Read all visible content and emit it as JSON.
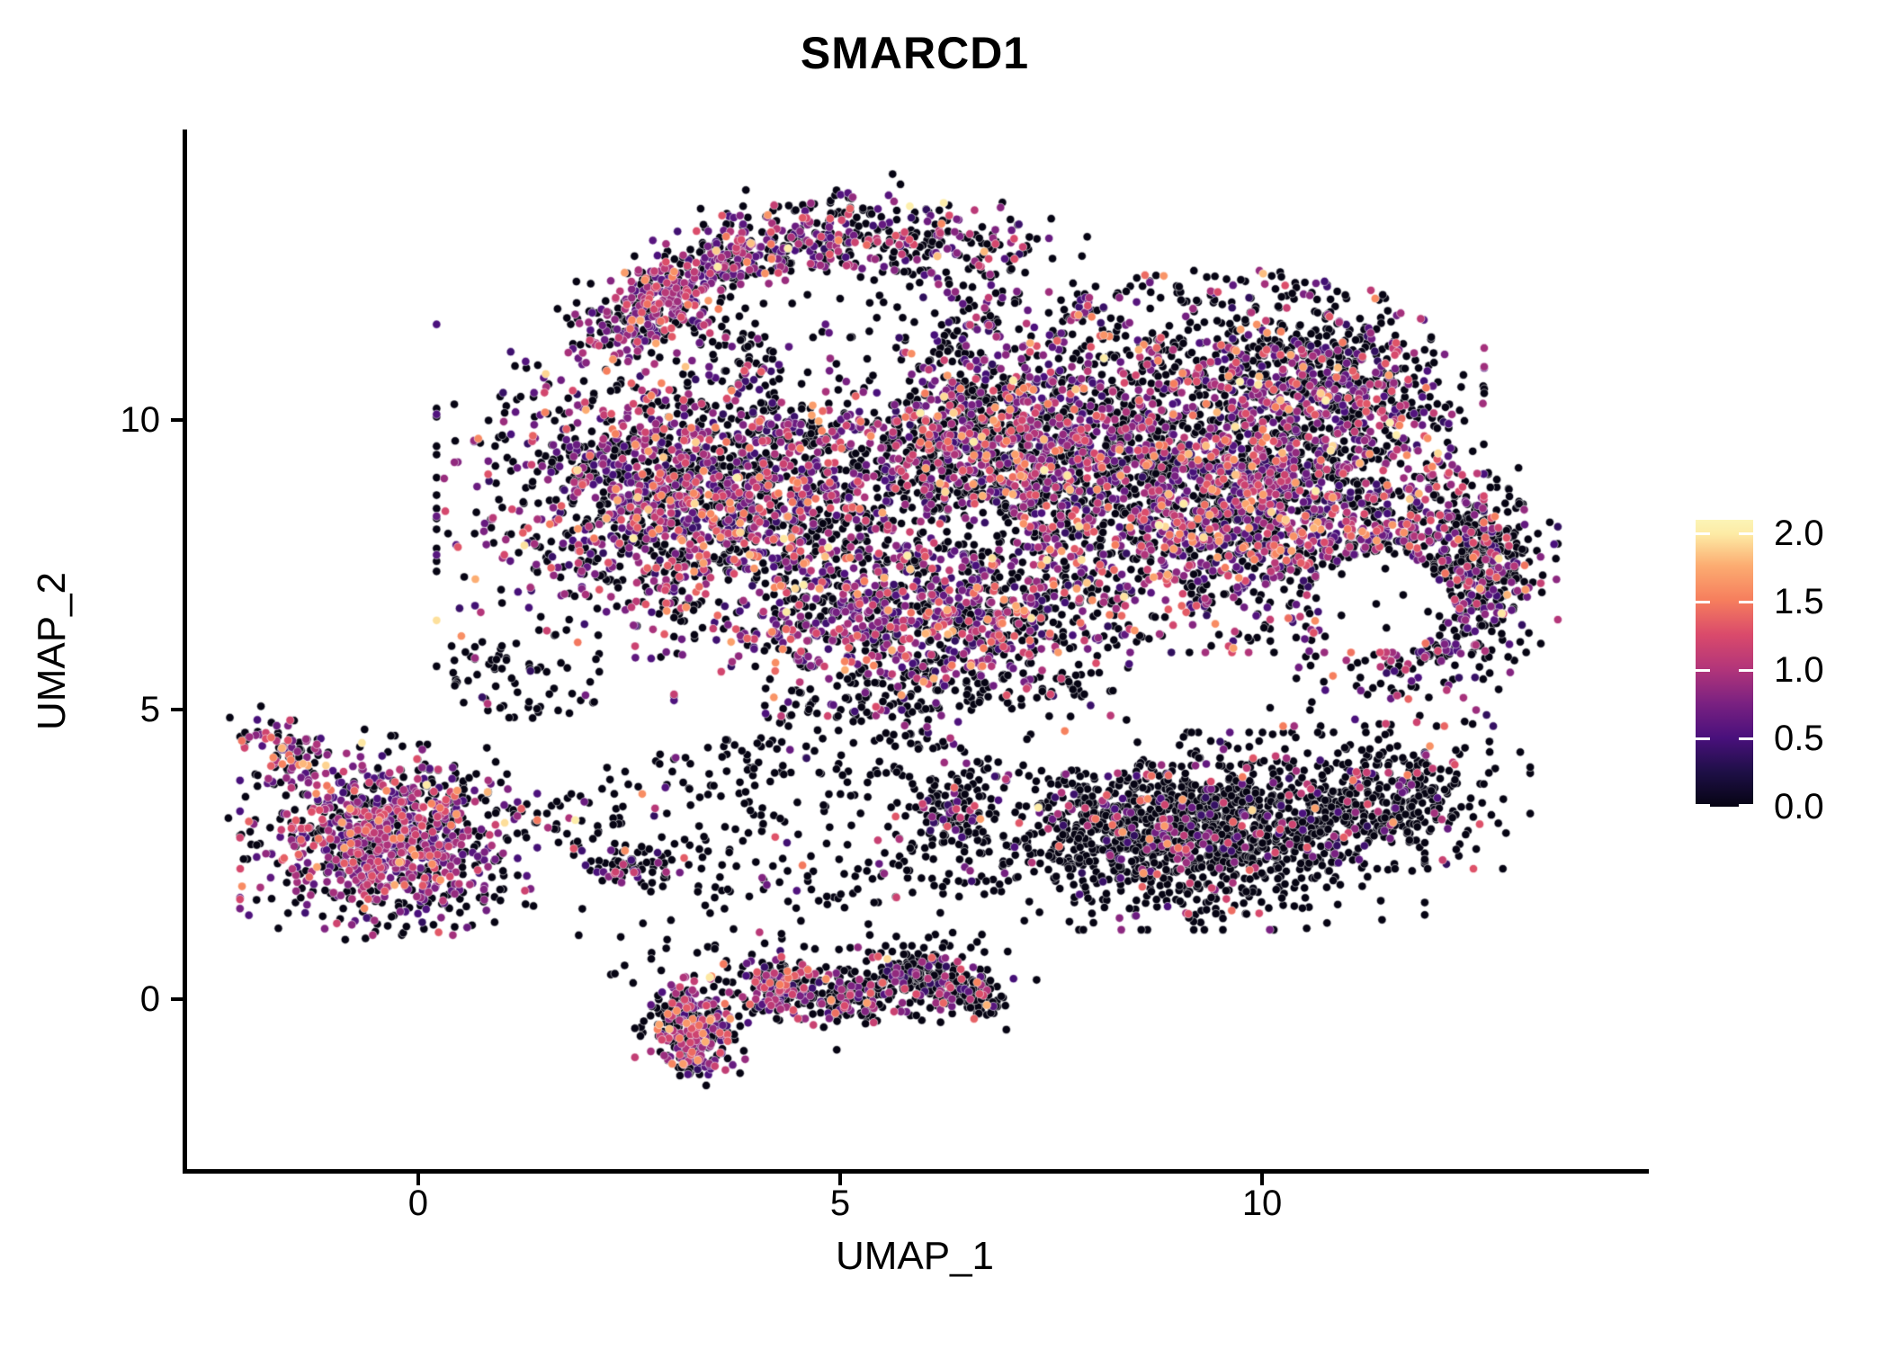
{
  "chart_data": {
    "type": "scatter",
    "title": "SMARCD1",
    "xlabel": "UMAP_1",
    "ylabel": "UMAP_2",
    "background": "#ffffff",
    "axis_color": "#000000",
    "grid": false,
    "x_ticks": [
      {
        "value": 0,
        "label": "0"
      },
      {
        "value": 5,
        "label": "5"
      },
      {
        "value": 10,
        "label": "10"
      }
    ],
    "y_ticks": [
      {
        "value": 0,
        "label": "0"
      },
      {
        "value": 5,
        "label": "5"
      },
      {
        "value": 10,
        "label": "10"
      }
    ],
    "xlim": [
      -2.77,
      14.54
    ],
    "ylim": [
      -2.97,
      15.02
    ],
    "point_radius_px": 4.6,
    "point_outline": "rgba(255,255,255,0.55)",
    "colorbar": {
      "position": "right",
      "bar_max_value": 2.1,
      "ticks": [
        {
          "value": 2.0,
          "label": "2.0"
        },
        {
          "value": 1.5,
          "label": "1.5"
        },
        {
          "value": 1.0,
          "label": "1.0"
        },
        {
          "value": 0.5,
          "label": "0.5"
        },
        {
          "value": 0.0,
          "label": "0.0"
        }
      ],
      "gradient_stops": [
        [
          0.0,
          "#060413"
        ],
        [
          0.12,
          "#1e0f46"
        ],
        [
          0.24,
          "#49107c"
        ],
        [
          0.36,
          "#7a2181"
        ],
        [
          0.48,
          "#b2357a"
        ],
        [
          0.6,
          "#da4a6b"
        ],
        [
          0.72,
          "#f67e5d"
        ],
        [
          0.84,
          "#fcac71"
        ],
        [
          0.95,
          "#fdeba5"
        ],
        [
          1.0,
          "#fcf4b6"
        ]
      ]
    },
    "seed": 1337,
    "color_profiles": {
      "mix": {
        "zero": 0.52,
        "bands": [
          [
            0.35,
            0.95,
            0.3
          ],
          [
            0.95,
            1.35,
            0.12
          ],
          [
            1.35,
            1.7,
            0.045
          ],
          [
            1.7,
            2.05,
            0.015
          ]
        ]
      },
      "mixBlack": {
        "zero": 0.63,
        "bands": [
          [
            0.35,
            0.95,
            0.24
          ],
          [
            0.95,
            1.35,
            0.09
          ],
          [
            1.35,
            1.7,
            0.03
          ],
          [
            1.7,
            2.05,
            0.01
          ]
        ]
      },
      "black": {
        "zero": 0.87,
        "bands": [
          [
            0.35,
            0.95,
            0.08
          ],
          [
            0.95,
            1.35,
            0.035
          ],
          [
            1.35,
            1.7,
            0.012
          ],
          [
            1.7,
            2.05,
            0.003
          ]
        ]
      },
      "blackMix": {
        "zero": 0.74,
        "bands": [
          [
            0.35,
            0.95,
            0.16
          ],
          [
            0.95,
            1.35,
            0.07
          ],
          [
            1.35,
            1.7,
            0.025
          ],
          [
            1.7,
            2.05,
            0.005
          ]
        ]
      },
      "purple": {
        "zero": 0.38,
        "bands": [
          [
            0.45,
            1.0,
            0.44
          ],
          [
            0.95,
            1.35,
            0.13
          ],
          [
            1.35,
            1.7,
            0.04
          ],
          [
            1.7,
            2.05,
            0.01
          ]
        ]
      },
      "purpleMix": {
        "zero": 0.45,
        "bands": [
          [
            0.45,
            1.0,
            0.37
          ],
          [
            0.95,
            1.35,
            0.12
          ],
          [
            1.35,
            1.7,
            0.05
          ],
          [
            1.7,
            2.05,
            0.01
          ]
        ]
      }
    },
    "clusters": [
      {
        "type": "blob",
        "cx": 3.4,
        "cy": 8.7,
        "rx": 2.8,
        "ry": 2.6,
        "n": 2000,
        "profile": "mix"
      },
      {
        "type": "blob",
        "cx": 7.0,
        "cy": 9.5,
        "rx": 2.6,
        "ry": 2.3,
        "n": 1850,
        "profile": "mix"
      },
      {
        "type": "blob",
        "cx": 9.9,
        "cy": 8.6,
        "rx": 2.4,
        "ry": 2.3,
        "n": 1700,
        "profile": "mix"
      },
      {
        "type": "blob",
        "cx": 11.8,
        "cy": 7.1,
        "rx": 1.5,
        "ry": 2.1,
        "n": 750,
        "profile": "mixBlack"
      },
      {
        "type": "blob",
        "cx": 6.1,
        "cy": 6.6,
        "rx": 2.7,
        "ry": 1.5,
        "n": 1000,
        "profile": "mix"
      },
      {
        "type": "blob",
        "cx": 10.7,
        "cy": 10.6,
        "rx": 1.7,
        "ry": 1.2,
        "n": 560,
        "profile": "mixBlack"
      },
      {
        "type": "blob",
        "cx": 12.7,
        "cy": 7.5,
        "rx": 0.5,
        "ry": 1.4,
        "n": 190,
        "profile": "blackMix"
      },
      {
        "type": "blob",
        "cx": 9.2,
        "cy": 2.9,
        "rx": 2.4,
        "ry": 1.5,
        "n": 1450,
        "profile": "black"
      },
      {
        "type": "blob",
        "cx": 11.7,
        "cy": 3.5,
        "rx": 1.3,
        "ry": 1.1,
        "n": 300,
        "profile": "black"
      },
      {
        "type": "blob",
        "cx": -0.35,
        "cy": 2.75,
        "rx": 1.55,
        "ry": 1.45,
        "n": 880,
        "profile": "purple"
      },
      {
        "type": "seg",
        "x1": 2.5,
        "y1": 11.8,
        "x2": 4.6,
        "y2": 13.35,
        "w": 0.35,
        "n": 320,
        "profile": "purple"
      },
      {
        "type": "seg",
        "x1": 4.6,
        "y1": 13.35,
        "x2": 7.1,
        "y2": 12.75,
        "w": 0.4,
        "n": 320,
        "profile": "mixBlack"
      },
      {
        "type": "seg",
        "x1": 2.05,
        "y1": 11.35,
        "x2": 4.1,
        "y2": 13.1,
        "w": 0.28,
        "n": 260,
        "profile": "purple"
      },
      {
        "type": "seg",
        "x1": -1.92,
        "y1": 4.65,
        "x2": -1.25,
        "y2": 3.95,
        "w": 0.22,
        "n": 80,
        "profile": "purpleMix"
      },
      {
        "type": "blob",
        "cx": 3.25,
        "cy": -0.45,
        "rx": 0.6,
        "ry": 0.75,
        "n": 250,
        "profile": "purpleMix"
      },
      {
        "type": "blob",
        "cx": 4.35,
        "cy": 0.2,
        "rx": 0.55,
        "ry": 0.5,
        "n": 165,
        "profile": "mix"
      },
      {
        "type": "blob",
        "cx": 5.1,
        "cy": 0.0,
        "rx": 0.5,
        "ry": 0.45,
        "n": 125,
        "profile": "blackMix"
      },
      {
        "type": "blob",
        "cx": 5.95,
        "cy": 0.35,
        "rx": 0.65,
        "ry": 0.5,
        "n": 210,
        "profile": "blackMix"
      },
      {
        "type": "blob",
        "cx": 6.6,
        "cy": 0.05,
        "rx": 0.4,
        "ry": 0.4,
        "n": 85,
        "profile": "black"
      },
      {
        "type": "seg",
        "x1": 2.55,
        "y1": 0.55,
        "x2": 6.9,
        "y2": 0.6,
        "w": 0.55,
        "n": 130,
        "profile": "black"
      },
      {
        "type": "blob",
        "cx": 3.3,
        "cy": -1.05,
        "rx": 0.3,
        "ry": 0.4,
        "n": 55,
        "profile": "mix"
      },
      {
        "type": "blob",
        "cx": 5.0,
        "cy": 3.1,
        "rx": 3.5,
        "ry": 1.5,
        "n": 400,
        "profile": "black",
        "flat": true
      },
      {
        "type": "blob",
        "cx": 2.5,
        "cy": 2.2,
        "rx": 0.5,
        "ry": 0.4,
        "n": 55,
        "profile": "blackMix"
      },
      {
        "type": "blob",
        "cx": 6.4,
        "cy": 3.3,
        "rx": 0.7,
        "ry": 0.5,
        "n": 75,
        "profile": "blackMix"
      },
      {
        "type": "blob",
        "cx": 6.3,
        "cy": 5.0,
        "rx": 2.2,
        "ry": 0.7,
        "n": 240,
        "profile": "black",
        "flat": true
      },
      {
        "type": "blob",
        "cx": 9.6,
        "cy": 11.7,
        "rx": 2.2,
        "ry": 0.9,
        "n": 230,
        "profile": "blackMix",
        "flat": true
      },
      {
        "type": "blob",
        "cx": -0.3,
        "cy": 2.8,
        "rx": 2.0,
        "ry": 1.9,
        "n": 120,
        "profile": "black",
        "flat": true
      },
      {
        "type": "blob",
        "cx": 1.3,
        "cy": 5.6,
        "rx": 1.0,
        "ry": 0.8,
        "n": 65,
        "profile": "black",
        "flat": true
      },
      {
        "type": "blob",
        "cx": 5.0,
        "cy": 11.6,
        "rx": 1.9,
        "ry": 0.9,
        "n": 150,
        "profile": "black",
        "flat": true
      }
    ],
    "voids": [
      {
        "cx": 11.4,
        "cy": 6.85,
        "rx": 0.85,
        "ry": 0.85,
        "keep": 0.05
      },
      {
        "cx": 5.1,
        "cy": 10.75,
        "rx": 0.85,
        "ry": 0.6,
        "keep": 0.3
      },
      {
        "cx": 4.9,
        "cy": 11.95,
        "rx": 1.5,
        "ry": 0.6,
        "keep": 0.25
      },
      {
        "cx": 7.7,
        "cy": 4.6,
        "rx": 1.35,
        "ry": 0.6,
        "keep": 0.15
      },
      {
        "cx": 3.9,
        "cy": 6.9,
        "rx": 0.5,
        "ry": 0.45,
        "keep": 0.3
      },
      {
        "cx": 6.6,
        "cy": 8.15,
        "rx": 0.5,
        "ry": 0.4,
        "keep": 0.35
      }
    ]
  }
}
